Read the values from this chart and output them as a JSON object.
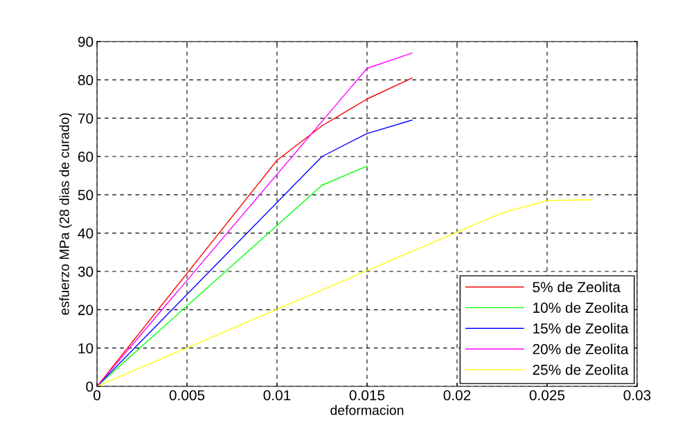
{
  "chart_data": {
    "type": "line",
    "xlabel": "deformacion",
    "ylabel": "esfuerzo MPa (28 dias de curado)",
    "xlim": [
      0,
      0.03
    ],
    "xticks": [
      0,
      0.005,
      0.01,
      0.015,
      0.02,
      0.025,
      0.03
    ],
    "ylim": [
      0,
      90
    ],
    "yticks": [
      0,
      10,
      20,
      30,
      40,
      50,
      60,
      70,
      80,
      90
    ],
    "grid": true,
    "legend": "bottom right",
    "marker": "none",
    "line_style": "solid",
    "series": [
      {
        "name": "5% de Zeolita",
        "color": "#ff0000",
        "x": [
          0,
          0.01,
          0.0125,
          0.015,
          0.0175
        ],
        "values": [
          0,
          59,
          68,
          75,
          80.5
        ]
      },
      {
        "name": "10% de Zeolita",
        "color": "#00ff00",
        "x": [
          0,
          0.0125,
          0.015
        ],
        "values": [
          0,
          52.5,
          57.5
        ]
      },
      {
        "name": "15% de Zeolita",
        "color": "#0000ff",
        "x": [
          0,
          0.0125,
          0.015,
          0.0175
        ],
        "values": [
          0,
          60,
          66,
          69.5
        ]
      },
      {
        "name": "20% de Zeolita",
        "color": "#ff00ff",
        "x": [
          0,
          0.015,
          0.0175
        ],
        "values": [
          0,
          83,
          87
        ]
      },
      {
        "name": "25% de Zeolita",
        "color": "#ffff00",
        "x": [
          0,
          0.0225,
          0.025,
          0.0275
        ],
        "values": [
          0,
          45.3,
          48.5,
          48.7
        ]
      }
    ]
  }
}
